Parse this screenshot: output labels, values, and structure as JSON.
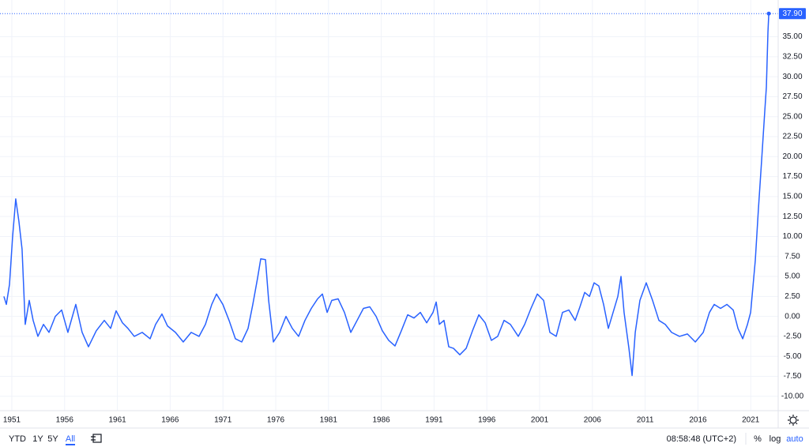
{
  "chart_data": {
    "type": "line",
    "series": [
      {
        "color": "#2962ff",
        "x": [
          1950.25,
          1950.48,
          1950.78,
          1951.07,
          1951.37,
          1951.67,
          1951.97,
          1952.27,
          1952.65,
          1953.02,
          1953.47,
          1954.0,
          1954.52,
          1955.12,
          1955.72,
          1956.31,
          1957.06,
          1957.66,
          1958.26,
          1959.0,
          1959.76,
          1960.36,
          1960.88,
          1961.48,
          1962.0,
          1962.6,
          1963.35,
          1964.1,
          1964.62,
          1965.22,
          1965.75,
          1966.5,
          1967.24,
          1967.99,
          1968.74,
          1969.34,
          1969.94,
          1970.39,
          1970.99,
          1971.58,
          1972.18,
          1972.78,
          1973.38,
          1973.83,
          1974.28,
          1974.58,
          1975.03,
          1975.33,
          1975.78,
          1976.37,
          1976.97,
          1977.57,
          1978.17,
          1978.77,
          1979.37,
          1979.97,
          1980.42,
          1980.87,
          1981.31,
          1981.91,
          1982.51,
          1983.11,
          1983.71,
          1984.31,
          1984.91,
          1985.51,
          1986.1,
          1986.7,
          1987.3,
          1987.9,
          1988.5,
          1989.1,
          1989.7,
          1990.3,
          1990.9,
          1991.2,
          1991.5,
          1991.94,
          1992.39,
          1992.84,
          1993.44,
          1994.04,
          1994.64,
          1995.24,
          1995.84,
          1996.43,
          1997.03,
          1997.63,
          1998.23,
          1998.98,
          1999.58,
          2000.18,
          2000.78,
          2001.38,
          2001.97,
          2002.57,
          2003.17,
          2003.77,
          2004.37,
          2004.82,
          2005.27,
          2005.72,
          2006.16,
          2006.61,
          2007.06,
          2007.51,
          2007.96,
          2008.41,
          2008.71,
          2009.0,
          2009.46,
          2009.76,
          2010.06,
          2010.5,
          2011.1,
          2011.7,
          2012.3,
          2012.9,
          2013.5,
          2014.25,
          2015.0,
          2015.75,
          2016.5,
          2017.09,
          2017.54,
          2018.14,
          2018.74,
          2019.34,
          2019.79,
          2020.24,
          2020.69,
          2020.99,
          2021.43,
          2021.73,
          2022.03,
          2022.33,
          2022.48,
          2022.63,
          2022.71
        ],
        "values": [
          2.5,
          1.5,
          4.0,
          9.9,
          14.7,
          11.9,
          8.4,
          -1.0,
          2.0,
          -0.5,
          -2.5,
          -1.0,
          -2.0,
          0,
          0.8,
          -2.0,
          1.5,
          -2.0,
          -3.8,
          -1.8,
          -0.5,
          -1.5,
          0.7,
          -0.8,
          -1.5,
          -2.5,
          -2.0,
          -2.8,
          -1.0,
          0.3,
          -1.2,
          -2.0,
          -3.2,
          -2.0,
          -2.5,
          -1.0,
          1.5,
          2.8,
          1.5,
          -0.5,
          -2.8,
          -3.2,
          -1.5,
          1.5,
          4.8,
          7.2,
          7.1,
          2.0,
          -3.2,
          -2.0,
          0,
          -1.5,
          -2.5,
          -0.5,
          1.0,
          2.2,
          2.8,
          0.5,
          2.0,
          2.2,
          0.5,
          -2.0,
          -0.5,
          1.0,
          1.2,
          0,
          -1.8,
          -3.0,
          -3.7,
          -1.8,
          0.2,
          -0.2,
          0.5,
          -0.8,
          0.5,
          1.8,
          -1.0,
          -0.5,
          -3.8,
          -4.0,
          -4.8,
          -4.0,
          -1.8,
          0.2,
          -0.8,
          -3.0,
          -2.5,
          -0.5,
          -1.0,
          -2.5,
          -1.0,
          1.0,
          2.8,
          2.0,
          -2.0,
          -2.5,
          0.5,
          0.8,
          -0.5,
          1.2,
          3.0,
          2.5,
          4.2,
          3.8,
          1.5,
          -1.5,
          0.5,
          2.5,
          5.0,
          0.5,
          -4.0,
          -7.4,
          -2.0,
          2.0,
          4.2,
          2.0,
          -0.5,
          -1.0,
          -2.0,
          -2.5,
          -2.2,
          -3.2,
          -2.0,
          0.5,
          1.5,
          1.0,
          1.5,
          0.8,
          -1.5,
          -2.8,
          -1.0,
          0.5,
          7.0,
          13.5,
          19.5,
          25.7,
          28.7,
          35.6,
          37.9
        ]
      }
    ],
    "last_value_label": {
      "value": 37.9,
      "label": "37.90"
    },
    "xlim": [
      1949.88,
      2023.6
    ],
    "xticks": [
      1951,
      1956,
      1961,
      1966,
      1971,
      1976,
      1981,
      1986,
      1991,
      1996,
      2001,
      2006,
      2011,
      2016,
      2021
    ],
    "ylim": [
      -11.8,
      39.6
    ],
    "yticks": [
      {
        "value": -10,
        "label": "-10.00"
      },
      {
        "value": -7.5,
        "label": "-7.50"
      },
      {
        "value": -5,
        "label": "-5.00"
      },
      {
        "value": -2.5,
        "label": "-2.50"
      },
      {
        "value": 0,
        "label": "0.00"
      },
      {
        "value": 2.5,
        "label": "2.50"
      },
      {
        "value": 5,
        "label": "5.00"
      },
      {
        "value": 7.5,
        "label": "7.50"
      },
      {
        "value": 10,
        "label": "10.00"
      },
      {
        "value": 12.5,
        "label": "12.50"
      },
      {
        "value": 15,
        "label": "15.00"
      },
      {
        "value": 17.5,
        "label": "17.50"
      },
      {
        "value": 20,
        "label": "20.00"
      },
      {
        "value": 22.5,
        "label": "22.50"
      },
      {
        "value": 25,
        "label": "25.00"
      },
      {
        "value": 27.5,
        "label": "27.50"
      },
      {
        "value": 30,
        "label": "30.00"
      },
      {
        "value": 32.5,
        "label": "32.50"
      },
      {
        "value": 35,
        "label": "35.00"
      }
    ],
    "grid": true,
    "log": false
  },
  "toolbar": {
    "ranges": [
      "YTD",
      "1Y",
      "5Y",
      "All"
    ],
    "time": "08:58:48 (UTC+2)",
    "options": [
      "%",
      "log",
      "auto"
    ]
  }
}
